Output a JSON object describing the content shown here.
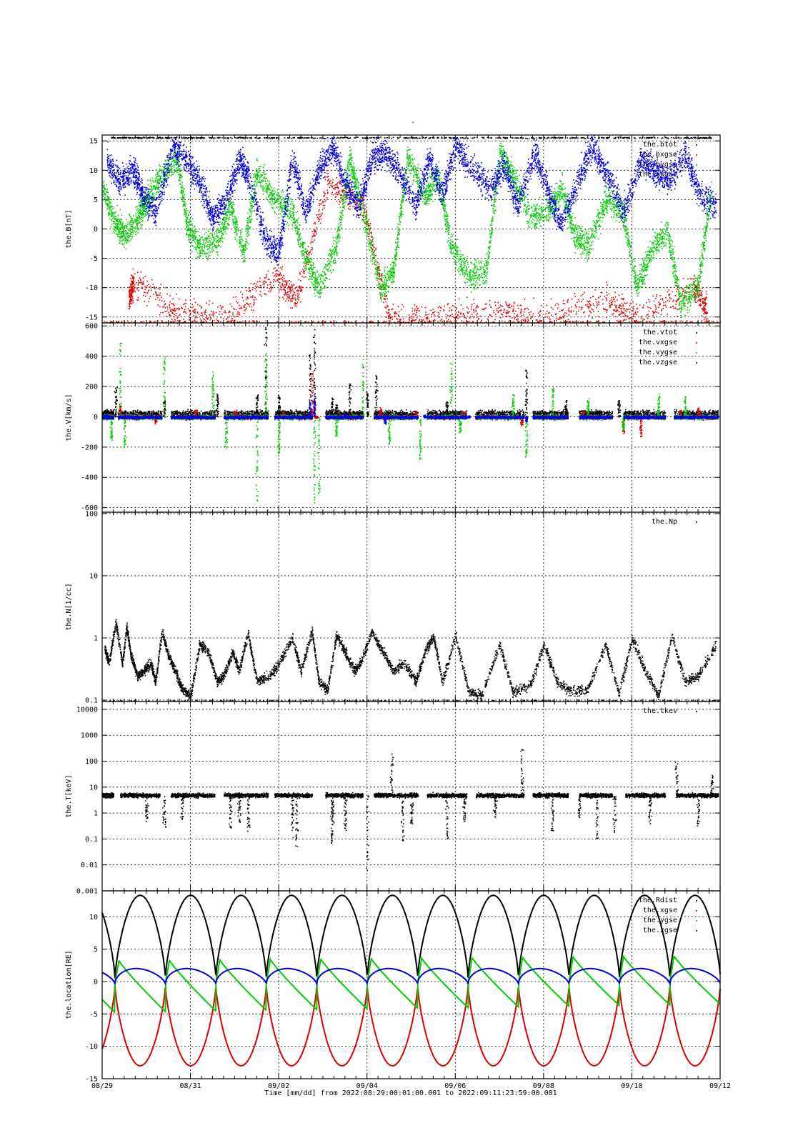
{
  "page_title": "-",
  "x_axis": {
    "ticks": [
      "08/29",
      "08/31",
      "09/02",
      "09/04",
      "09/06",
      "09/08",
      "09/10",
      "09/12"
    ],
    "tick_days": [
      0,
      2,
      4,
      6,
      8,
      10,
      12,
      14
    ],
    "label": "Time [mm/dd]  from 2022:08:29:00:01:00.001  to  2022:09:11:23:59:00.001",
    "range_days": [
      0,
      14
    ]
  },
  "colors": {
    "black": "#000000",
    "red": "#dd0000",
    "green": "#00cc00",
    "blue": "#0000dd"
  },
  "chart_data": [
    {
      "type": "scatter",
      "ylabel": "the.B[nT]",
      "scale": "linear",
      "ylim": [
        -16,
        16
      ],
      "yticks": [
        15,
        10,
        5,
        0,
        -5,
        -10,
        -15
      ],
      "ytick_labels": [
        "15",
        "10",
        "5",
        "0",
        "-5",
        "-10",
        "-15"
      ],
      "legend": [
        "the.btot",
        "the.bxgse",
        "the.bygse",
        "the.bzgse"
      ],
      "legend_placement": "top-right",
      "grid": true,
      "series": [
        {
          "name": "the.btot",
          "color": "#000000",
          "x": [
            0.2,
            0.8,
            1.5,
            2.3,
            3.5,
            4.8,
            6.3,
            7.8,
            9.2,
            10.6,
            11.8,
            13.2,
            13.8
          ],
          "y": [
            15.5,
            15.5,
            15.5,
            15.5,
            15.5,
            15.5,
            15.5,
            15.5,
            15.5,
            15.5,
            15.5,
            15.5,
            15.5
          ]
        },
        {
          "name": "the.bxgse",
          "color": "#dd0000",
          "x": [
            0.6,
            0.7,
            1.7,
            2.8,
            3.9,
            4.4,
            5.1,
            5.9,
            6.5,
            7.6,
            8.9,
            10.1,
            11.4,
            12.1,
            13.4,
            13.7
          ],
          "y": [
            -12,
            -9,
            -14,
            -15,
            -8,
            -12,
            8,
            4,
            -15,
            -15,
            -14,
            -15,
            -12,
            -15,
            -10,
            -14
          ]
        },
        {
          "name": "the.bygse",
          "color": "#00cc00",
          "x": [
            0.0,
            0.3,
            0.5,
            0.8,
            1.0,
            1.3,
            1.7,
            1.9,
            2.2,
            2.6,
            2.9,
            3.2,
            3.5,
            3.9,
            4.3,
            4.6,
            4.9,
            5.3,
            5.6,
            5.9,
            6.3,
            6.6,
            6.9,
            7.3,
            7.6,
            7.9,
            8.3,
            8.7,
            9.0,
            9.3,
            9.7,
            10.1,
            10.4,
            10.7,
            11.0,
            11.4,
            11.8,
            12.1,
            12.4,
            12.8,
            13.1,
            13.5,
            13.8
          ],
          "y": [
            7,
            1,
            -1,
            2,
            5,
            9,
            12,
            1,
            -3,
            -2,
            4,
            -4,
            10,
            5,
            3,
            -5,
            -10,
            -3,
            12,
            3,
            -10,
            -7,
            12,
            6,
            9,
            -3,
            -8,
            -7,
            13,
            9,
            2,
            3,
            7,
            -1,
            -3,
            5,
            3,
            -10,
            -4,
            0,
            -13,
            -9,
            7
          ]
        },
        {
          "name": "the.bzgse",
          "color": "#0000dd",
          "x": [
            0.1,
            0.4,
            0.7,
            0.9,
            1.2,
            1.6,
            1.9,
            2.2,
            2.5,
            2.8,
            3.1,
            3.3,
            3.7,
            4.0,
            4.3,
            4.6,
            4.9,
            5.2,
            5.5,
            5.8,
            6.1,
            6.4,
            6.7,
            7.1,
            7.4,
            7.7,
            8.0,
            8.4,
            8.8,
            9.1,
            9.4,
            9.8,
            10.1,
            10.4,
            10.8,
            11.1,
            11.4,
            11.8,
            12.2,
            12.5,
            12.8,
            13.2,
            13.5,
            13.9
          ],
          "y": [
            12,
            8,
            10,
            6,
            3,
            14,
            12,
            8,
            2,
            5,
            12,
            9,
            -2,
            -4,
            12,
            3,
            10,
            14,
            8,
            4,
            12,
            13,
            10,
            4,
            12,
            6,
            14,
            10,
            7,
            11,
            4,
            13,
            6,
            1,
            9,
            14,
            10,
            3,
            12,
            10,
            8,
            13,
            6,
            4
          ]
        }
      ]
    },
    {
      "type": "scatter",
      "ylabel": "the.V[km/s]",
      "scale": "linear",
      "ylim": [
        -630,
        620
      ],
      "yticks": [
        600,
        400,
        200,
        0,
        -200,
        -400,
        -600
      ],
      "ytick_labels": [
        "600",
        "400",
        "200",
        "0",
        "-200",
        "-400",
        "-600"
      ],
      "legend": [
        "the.vtot",
        "the.vxgse",
        "the.vygse",
        "the.vzgse"
      ],
      "legend_placement": "top-right",
      "grid": true,
      "active_intervals_days": [
        [
          0.0,
          0.25
        ],
        [
          0.35,
          1.35
        ],
        [
          1.55,
          2.55
        ],
        [
          2.75,
          3.75
        ],
        [
          3.9,
          4.75
        ],
        [
          5.05,
          5.9
        ],
        [
          6.15,
          7.15
        ],
        [
          7.35,
          8.25
        ],
        [
          8.45,
          9.55
        ],
        [
          9.75,
          10.55
        ],
        [
          10.8,
          11.55
        ],
        [
          11.8,
          12.75
        ],
        [
          12.95,
          13.95
        ]
      ],
      "series": [
        {
          "name": "the.vtot",
          "color": "#000000",
          "x": [
            0.3,
            1.4,
            2.6,
            3.5,
            3.7,
            4.0,
            4.7,
            4.8,
            5.2,
            5.3,
            5.6,
            6.0,
            6.2,
            7.8,
            9.6,
            10.5,
            11.7
          ],
          "y": [
            200,
            120,
            150,
            150,
            600,
            150,
            420,
            600,
            130,
            80,
            220,
            170,
            290,
            100,
            320,
            120,
            110
          ]
        },
        {
          "name": "the.vxgse",
          "color": "#dd0000",
          "x": [
            0.4,
            1.2,
            2.1,
            3.0,
            4.1,
            4.75,
            4.8,
            4.85,
            6.3,
            7.1,
            8.2,
            9.5,
            10.9,
            11.8,
            12.2,
            13.1,
            13.5
          ],
          "y": [
            80,
            -40,
            50,
            40,
            30,
            300,
            100,
            0,
            60,
            40,
            30,
            -50,
            40,
            -100,
            -130,
            40,
            60
          ]
        },
        {
          "name": "the.vygse",
          "color": "#00cc00",
          "x": [
            0.2,
            0.4,
            0.5,
            1.4,
            2.5,
            2.8,
            3.5,
            3.7,
            4.0,
            4.8,
            4.9,
            5.3,
            5.9,
            6.5,
            7.2,
            7.9,
            8.1,
            9.3,
            9.6,
            10.2,
            11.0,
            11.8,
            12.6,
            13.2
          ],
          "y": [
            -150,
            500,
            -200,
            400,
            300,
            -200,
            -570,
            450,
            -250,
            -580,
            -500,
            -120,
            400,
            -180,
            -280,
            360,
            -100,
            150,
            -270,
            200,
            130,
            -80,
            150,
            130
          ]
        },
        {
          "name": "the.vzgse",
          "color": "#0000dd",
          "x": [
            0.1,
            0.5,
            1.0,
            1.9,
            2.8,
            3.4,
            4.1,
            4.7,
            4.8,
            5.5,
            6.4,
            7.3,
            8.3,
            9.2,
            9.6,
            10.4,
            11.4,
            12.4,
            13.4
          ],
          "y": [
            10,
            0,
            5,
            0,
            -5,
            10,
            0,
            100,
            150,
            20,
            -40,
            10,
            5,
            0,
            -30,
            10,
            0,
            10,
            5
          ]
        }
      ]
    },
    {
      "type": "scatter",
      "ylabel": "the.N[1/cc]",
      "scale": "log",
      "ylim": [
        0.095,
        105
      ],
      "yticks": [
        100,
        10,
        1,
        0.1
      ],
      "ytick_labels": [
        "100",
        "10",
        "1",
        "0.1"
      ],
      "legend": [
        "the.Np"
      ],
      "legend_placement": "top-right",
      "grid": true,
      "series": [
        {
          "name": "the.Np",
          "color": "#000000",
          "x": [
            0.05,
            0.15,
            0.3,
            0.45,
            0.55,
            0.65,
            0.8,
            0.95,
            1.1,
            1.2,
            1.35,
            1.5,
            1.65,
            1.8,
            2.0,
            2.2,
            2.4,
            2.6,
            2.75,
            2.95,
            3.1,
            3.3,
            3.5,
            3.8,
            4.0,
            4.3,
            4.5,
            4.75,
            4.9,
            5.1,
            5.3,
            5.5,
            5.7,
            5.85,
            6.1,
            6.35,
            6.6,
            6.85,
            7.1,
            7.3,
            7.5,
            7.7,
            8.0,
            8.3,
            8.6,
            9.0,
            9.3,
            9.7,
            10.0,
            10.3,
            10.6,
            11.0,
            11.4,
            11.7,
            12.0,
            12.3,
            12.6,
            12.9,
            13.2,
            13.5,
            13.9
          ],
          "y": [
            0.7,
            0.4,
            1.8,
            0.4,
            1.5,
            0.5,
            0.25,
            0.3,
            0.4,
            0.2,
            1.3,
            0.5,
            0.3,
            0.15,
            0.12,
            0.8,
            0.6,
            0.2,
            0.25,
            0.6,
            0.3,
            1.2,
            0.2,
            0.25,
            0.4,
            1.0,
            0.3,
            1.3,
            0.2,
            0.15,
            1.1,
            0.6,
            0.3,
            0.4,
            1.3,
            0.6,
            0.3,
            0.4,
            0.2,
            0.6,
            1.1,
            0.2,
            1.1,
            0.14,
            0.12,
            0.8,
            0.13,
            0.18,
            0.8,
            0.2,
            0.14,
            0.15,
            0.8,
            0.13,
            1.0,
            0.3,
            0.12,
            1.1,
            0.2,
            0.25,
            0.8
          ]
        }
      ]
    },
    {
      "type": "scatter",
      "ylabel": "the.T[keV]",
      "scale": "log",
      "ylim": [
        0.001,
        20000
      ],
      "yticks": [
        10000,
        1000,
        100,
        10,
        1,
        0.1,
        0.01,
        0.001
      ],
      "ytick_labels": [
        "10000",
        "1000",
        "100",
        "10",
        "1",
        "0.1",
        "0.01",
        "0.001"
      ],
      "legend": [
        "the.tkev"
      ],
      "legend_placement": "top-right",
      "grid": true,
      "active_intervals_days": [
        [
          0.0,
          0.25
        ],
        [
          0.4,
          1.3
        ],
        [
          1.55,
          2.55
        ],
        [
          2.75,
          3.75
        ],
        [
          3.9,
          4.75
        ],
        [
          5.05,
          5.9
        ],
        [
          6.15,
          7.15
        ],
        [
          7.35,
          8.25
        ],
        [
          8.45,
          9.55
        ],
        [
          9.75,
          10.55
        ],
        [
          10.8,
          11.55
        ],
        [
          11.85,
          12.75
        ],
        [
          13.0,
          13.95
        ]
      ],
      "series": [
        {
          "name": "the.tkev",
          "color": "#000000",
          "x": [
            1.0,
            1.4,
            1.8,
            2.9,
            3.1,
            3.3,
            4.3,
            4.4,
            5.2,
            5.2,
            5.5,
            6.0,
            6.55,
            6.8,
            7.0,
            7.8,
            8.2,
            8.9,
            9.5,
            10.2,
            10.8,
            11.2,
            11.6,
            12.4,
            13.0,
            13.5,
            13.8
          ],
          "y": [
            0.5,
            0.3,
            0.5,
            0.2,
            0.3,
            0.2,
            0.1,
            0.05,
            0.1,
            0.07,
            0.2,
            0.005,
            200,
            0.08,
            0.4,
            0.1,
            0.5,
            0.7,
            300,
            0.2,
            0.5,
            0.1,
            0.15,
            0.4,
            100,
            0.3,
            30
          ]
        }
      ]
    },
    {
      "type": "line",
      "ylabel": "the.location[RE]",
      "scale": "linear",
      "ylim": [
        -15,
        14
      ],
      "yticks": [
        10,
        5,
        0,
        -5,
        -10,
        -15
      ],
      "ytick_labels": [
        "10",
        "5",
        "0",
        "-5",
        "-10",
        "-15"
      ],
      "legend": [
        "the.Rdist",
        "the.xgse",
        "the.ygse",
        "the.zgse"
      ],
      "legend_placement": "top-right",
      "grid": true,
      "orbit_period_days": 1.1429,
      "first_perigee_day": 0.29,
      "series": [
        {
          "name": "the.Rdist",
          "color": "#000000",
          "amplitude": 13.3,
          "perigee": 0.5
        },
        {
          "name": "the.xgse",
          "color": "#dd0000",
          "amplitude": -13.0,
          "perigee": -0.5
        },
        {
          "name": "the.ygse",
          "color": "#00cc00",
          "start_value": -4.8,
          "end_value": -3.5,
          "apogee_start": 3.2,
          "apogee_end": 4.0
        },
        {
          "name": "the.zgse",
          "color": "#0000dd",
          "peak": 2.0,
          "trough": -0.4
        }
      ]
    }
  ]
}
